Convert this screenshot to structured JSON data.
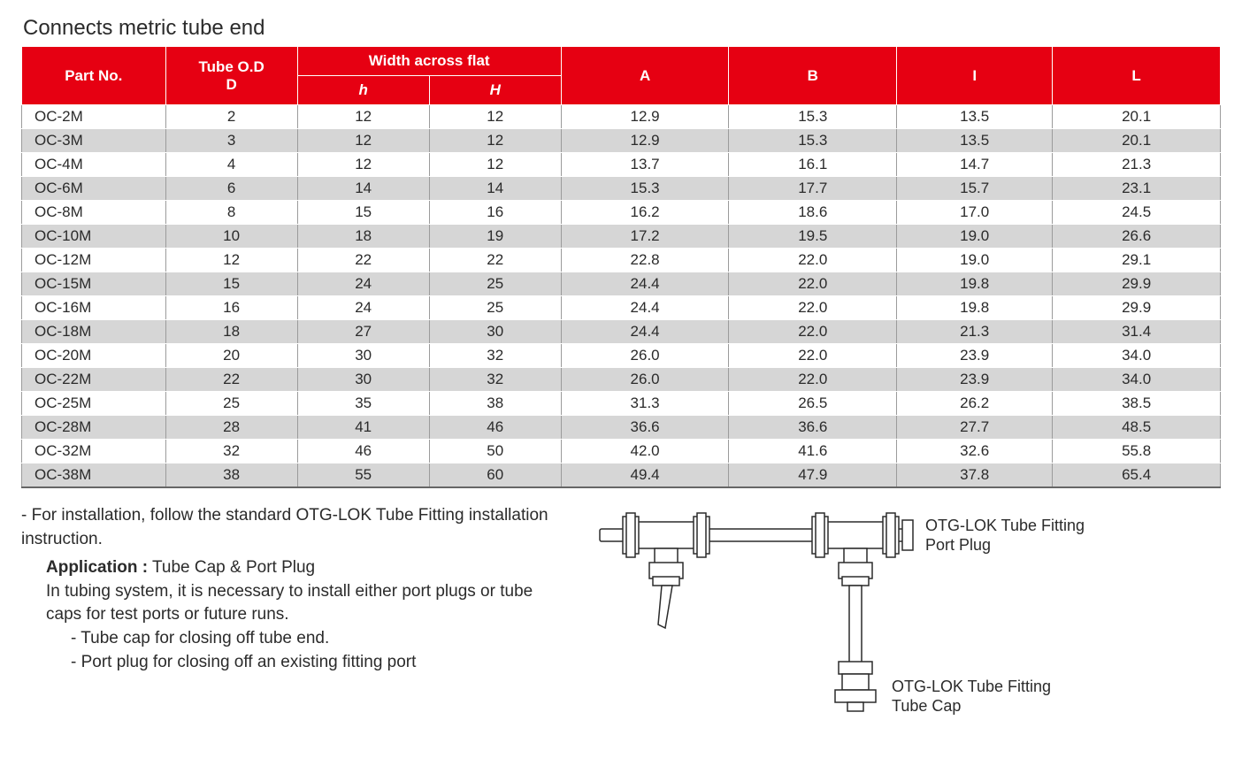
{
  "title": "Connects metric tube end",
  "table": {
    "header": {
      "part_no": "Part No.",
      "tube_od_top": "Tube O.D",
      "tube_od_bottom": "D",
      "waf": "Width across flat",
      "h_lower": "h",
      "h_upper": "H",
      "A": "A",
      "B": "B",
      "I": "I",
      "L": "L"
    },
    "header_bg": "#e60012",
    "header_fg": "#ffffff",
    "row_alt_bg": "#d6d6d6",
    "row_bg": "#ffffff",
    "border_color": "#9b9b9b",
    "rows": [
      {
        "pn": "OC-2M",
        "d": "2",
        "h": "12",
        "H": "12",
        "A": "12.9",
        "B": "15.3",
        "I": "13.5",
        "L": "20.1"
      },
      {
        "pn": "OC-3M",
        "d": "3",
        "h": "12",
        "H": "12",
        "A": "12.9",
        "B": "15.3",
        "I": "13.5",
        "L": "20.1"
      },
      {
        "pn": "OC-4M",
        "d": "4",
        "h": "12",
        "H": "12",
        "A": "13.7",
        "B": "16.1",
        "I": "14.7",
        "L": "21.3"
      },
      {
        "pn": "OC-6M",
        "d": "6",
        "h": "14",
        "H": "14",
        "A": "15.3",
        "B": "17.7",
        "I": "15.7",
        "L": "23.1"
      },
      {
        "pn": "OC-8M",
        "d": "8",
        "h": "15",
        "H": "16",
        "A": "16.2",
        "B": "18.6",
        "I": "17.0",
        "L": "24.5"
      },
      {
        "pn": "OC-10M",
        "d": "10",
        "h": "18",
        "H": "19",
        "A": "17.2",
        "B": "19.5",
        "I": "19.0",
        "L": "26.6"
      },
      {
        "pn": "OC-12M",
        "d": "12",
        "h": "22",
        "H": "22",
        "A": "22.8",
        "B": "22.0",
        "I": "19.0",
        "L": "29.1"
      },
      {
        "pn": "OC-15M",
        "d": "15",
        "h": "24",
        "H": "25",
        "A": "24.4",
        "B": "22.0",
        "I": "19.8",
        "L": "29.9"
      },
      {
        "pn": "OC-16M",
        "d": "16",
        "h": "24",
        "H": "25",
        "A": "24.4",
        "B": "22.0",
        "I": "19.8",
        "L": "29.9"
      },
      {
        "pn": "OC-18M",
        "d": "18",
        "h": "27",
        "H": "30",
        "A": "24.4",
        "B": "22.0",
        "I": "21.3",
        "L": "31.4"
      },
      {
        "pn": "OC-20M",
        "d": "20",
        "h": "30",
        "H": "32",
        "A": "26.0",
        "B": "22.0",
        "I": "23.9",
        "L": "34.0"
      },
      {
        "pn": "OC-22M",
        "d": "22",
        "h": "30",
        "H": "32",
        "A": "26.0",
        "B": "22.0",
        "I": "23.9",
        "L": "34.0"
      },
      {
        "pn": "OC-25M",
        "d": "25",
        "h": "35",
        "H": "38",
        "A": "31.3",
        "B": "26.5",
        "I": "26.2",
        "L": "38.5"
      },
      {
        "pn": "OC-28M",
        "d": "28",
        "h": "41",
        "H": "46",
        "A": "36.6",
        "B": "36.6",
        "I": "27.7",
        "L": "48.5"
      },
      {
        "pn": "OC-32M",
        "d": "32",
        "h": "46",
        "H": "50",
        "A": "42.0",
        "B": "41.6",
        "I": "32.6",
        "L": "55.8"
      },
      {
        "pn": "OC-38M",
        "d": "38",
        "h": "55",
        "H": "60",
        "A": "49.4",
        "B": "47.9",
        "I": "37.8",
        "L": "65.4"
      }
    ]
  },
  "notes": {
    "line1": "- For installation, follow the standard OTG-LOK Tube Fitting installation instruction.",
    "app_label": "Application :",
    "app_value": " Tube Cap & Port Plug",
    "app_body": "In tubing system, it is necessary to install either port plugs or tube caps for test ports or future runs.",
    "bullet1": "- Tube cap for closing off tube end.",
    "bullet2": "- Port plug for closing off an existing fitting port"
  },
  "diagram": {
    "label_port_plug": "OTG-LOK Tube Fitting\nPort Plug",
    "label_tube_cap": "OTG-LOK Tube Fitting\nTube Cap",
    "stroke": "#2b2b2b",
    "stroke_width": 1.5,
    "fill": "#ffffff"
  }
}
